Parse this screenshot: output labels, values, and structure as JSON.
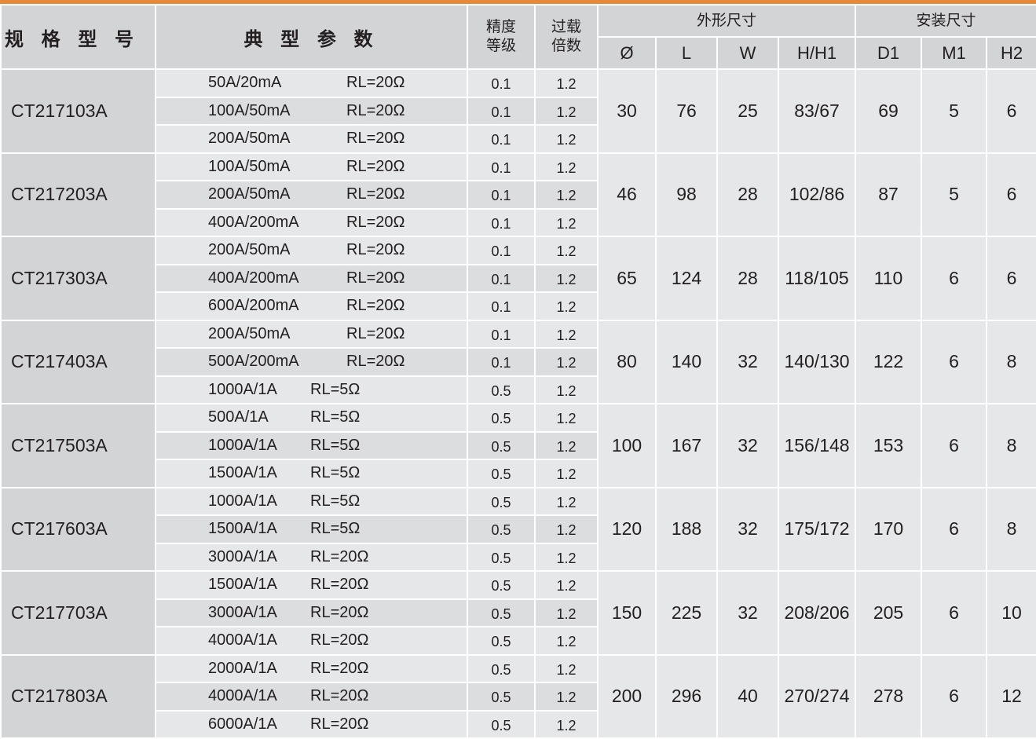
{
  "header": {
    "model": "规 格 型 号",
    "params": "典 型 参 数",
    "accuracy": "精度\n等级",
    "overload": "过载\n倍数",
    "outline": "外形尺寸",
    "mounting": "安装尺寸",
    "dims": [
      "Ø",
      "L",
      "W",
      "H/H1",
      "D1",
      "M1",
      "H2"
    ]
  },
  "colors": {
    "accent": "#e8893a",
    "header_bg": "#d3d4d6",
    "cell_light": "#e6e7e8",
    "cell_dark": "#dcdddf"
  },
  "rows": [
    {
      "model": "CT217103A",
      "subs": [
        [
          "50A/20mA",
          "RL=20Ω",
          "0.1",
          "1.2"
        ],
        [
          "100A/50mA",
          "RL=20Ω",
          "0.1",
          "1.2"
        ],
        [
          "200A/50mA",
          "RL=20Ω",
          "0.1",
          "1.2"
        ]
      ],
      "dims": [
        "30",
        "76",
        "25",
        "83/67",
        "69",
        "5",
        "6"
      ]
    },
    {
      "model": "CT217203A",
      "subs": [
        [
          "100A/50mA",
          "RL=20Ω",
          "0.1",
          "1.2"
        ],
        [
          "200A/50mA",
          "RL=20Ω",
          "0.1",
          "1.2"
        ],
        [
          "400A/200mA",
          "RL=20Ω",
          "0.1",
          "1.2"
        ]
      ],
      "dims": [
        "46",
        "98",
        "28",
        "102/86",
        "87",
        "5",
        "6"
      ]
    },
    {
      "model": "CT217303A",
      "subs": [
        [
          "200A/50mA",
          "RL=20Ω",
          "0.1",
          "1.2"
        ],
        [
          "400A/200mA",
          "RL=20Ω",
          "0.1",
          "1.2"
        ],
        [
          "600A/200mA",
          "RL=20Ω",
          "0.1",
          "1.2"
        ]
      ],
      "dims": [
        "65",
        "124",
        "28",
        "118/105",
        "110",
        "6",
        "6"
      ]
    },
    {
      "model": "CT217403A",
      "subs": [
        [
          "200A/50mA",
          "RL=20Ω",
          "0.1",
          "1.2"
        ],
        [
          "500A/200mA",
          "RL=20Ω",
          "0.1",
          "1.2"
        ],
        [
          "1000A/1A",
          "RL=5Ω",
          "0.5",
          "1.2"
        ]
      ],
      "dims": [
        "80",
        "140",
        "32",
        "140/130",
        "122",
        "6",
        "8"
      ]
    },
    {
      "model": "CT217503A",
      "subs": [
        [
          "500A/1A",
          "RL=5Ω",
          "0.5",
          "1.2"
        ],
        [
          "1000A/1A",
          "RL=5Ω",
          "0.5",
          "1.2"
        ],
        [
          "1500A/1A",
          "RL=5Ω",
          "0.5",
          "1.2"
        ]
      ],
      "dims": [
        "100",
        "167",
        "32",
        "156/148",
        "153",
        "6",
        "8"
      ]
    },
    {
      "model": "CT217603A",
      "subs": [
        [
          "1000A/1A",
          "RL=5Ω",
          "0.5",
          "1.2"
        ],
        [
          "1500A/1A",
          "RL=5Ω",
          "0.5",
          "1.2"
        ],
        [
          "3000A/1A",
          "RL=20Ω",
          "0.5",
          "1.2"
        ]
      ],
      "dims": [
        "120",
        "188",
        "32",
        "175/172",
        "170",
        "6",
        "8"
      ]
    },
    {
      "model": "CT217703A",
      "subs": [
        [
          "1500A/1A",
          "RL=20Ω",
          "0.5",
          "1.2"
        ],
        [
          "3000A/1A",
          "RL=20Ω",
          "0.5",
          "1.2"
        ],
        [
          "4000A/1A",
          "RL=20Ω",
          "0.5",
          "1.2"
        ]
      ],
      "dims": [
        "150",
        "225",
        "32",
        "208/206",
        "205",
        "6",
        "10"
      ]
    },
    {
      "model": "CT217803A",
      "subs": [
        [
          "2000A/1A",
          "RL=20Ω",
          "0.5",
          "1.2"
        ],
        [
          "4000A/1A",
          "RL=20Ω",
          "0.5",
          "1.2"
        ],
        [
          "6000A/1A",
          "RL=20Ω",
          "0.5",
          "1.2"
        ]
      ],
      "dims": [
        "200",
        "296",
        "40",
        "270/274",
        "278",
        "6",
        "12"
      ]
    }
  ]
}
